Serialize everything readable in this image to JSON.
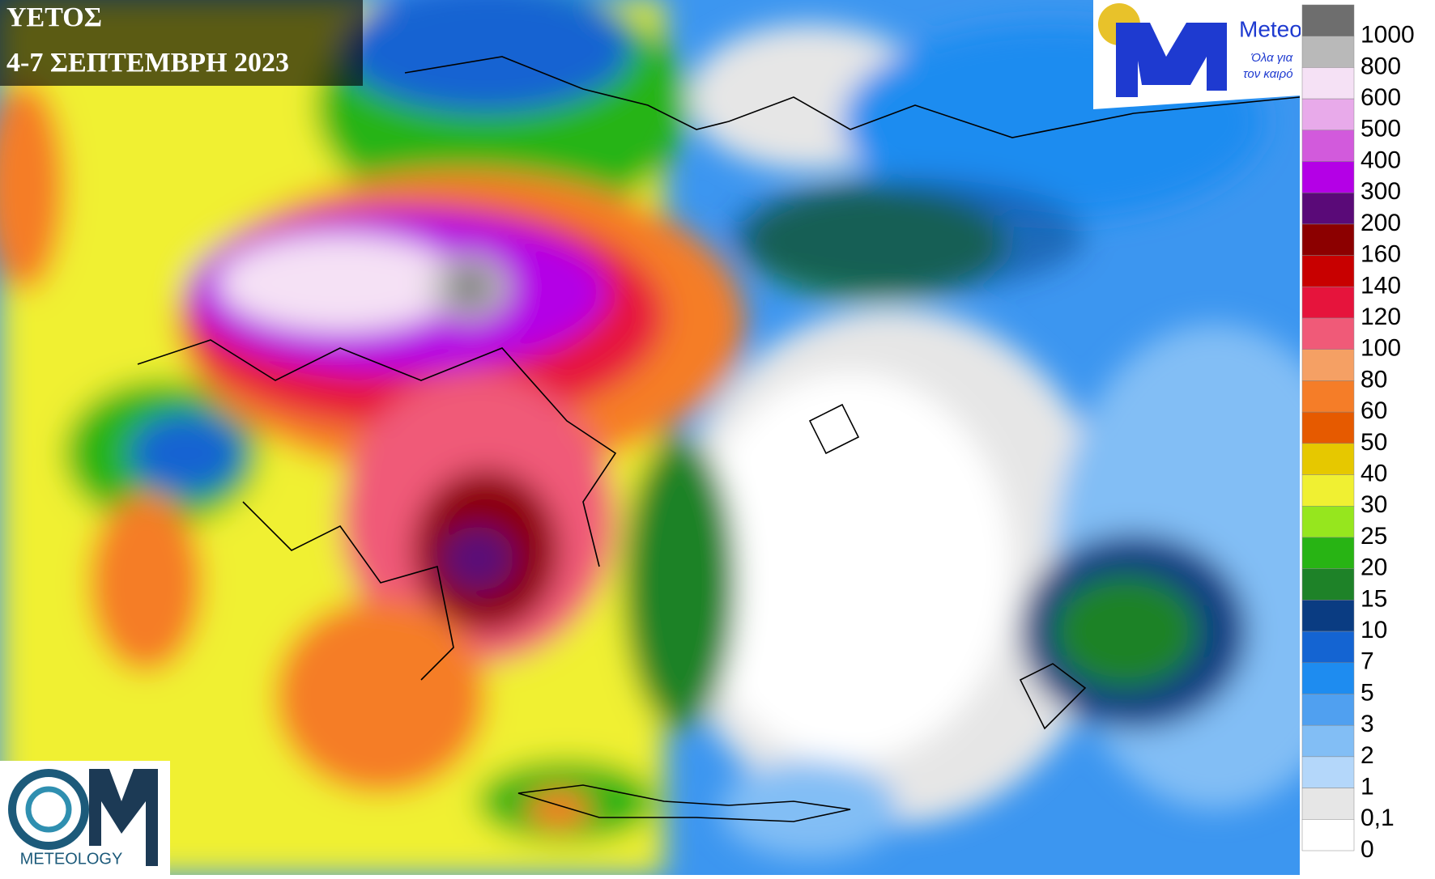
{
  "header": {
    "title": "ΥΕΤΟΣ",
    "subtitle": "4-7 ΣΕΠΤΕΜΒΡΗ 2023"
  },
  "logos": {
    "meteo": {
      "name": "Meteo",
      "tagline_1": "Όλα για",
      "tagline_2": "τον καιρό"
    },
    "meteology": "METEOLOGY"
  },
  "legend": {
    "items": [
      {
        "label": "1000",
        "color": "#6e6e6e"
      },
      {
        "label": "800",
        "color": "#b9b9b9"
      },
      {
        "label": "600",
        "color": "#f5e1f5"
      },
      {
        "label": "500",
        "color": "#e8aaea"
      },
      {
        "label": "400",
        "color": "#d25adc"
      },
      {
        "label": "300",
        "color": "#b400e6"
      },
      {
        "label": "200",
        "color": "#5a0a78"
      },
      {
        "label": "160",
        "color": "#8c0000"
      },
      {
        "label": "140",
        "color": "#c80000"
      },
      {
        "label": "120",
        "color": "#e6143c"
      },
      {
        "label": "100",
        "color": "#f05a78"
      },
      {
        "label": "80",
        "color": "#f5a064"
      },
      {
        "label": "60",
        "color": "#f57d28"
      },
      {
        "label": "50",
        "color": "#e65a00"
      },
      {
        "label": "40",
        "color": "#e6c800"
      },
      {
        "label": "30",
        "color": "#f0f032"
      },
      {
        "label": "25",
        "color": "#96e61e"
      },
      {
        "label": "20",
        "color": "#28b414"
      },
      {
        "label": "15",
        "color": "#1e8228"
      },
      {
        "label": "10",
        "color": "#0a3c82"
      },
      {
        "label": "7",
        "color": "#1464d2"
      },
      {
        "label": "5",
        "color": "#1e8cf0"
      },
      {
        "label": "3",
        "color": "#50a0f0"
      },
      {
        "label": "2",
        "color": "#82bef5"
      },
      {
        "label": "1",
        "color": "#b4d7fa"
      },
      {
        "label": "0,1",
        "color": "#e6e6e6"
      },
      {
        "label": "0",
        "color": "#ffffff"
      }
    ]
  }
}
